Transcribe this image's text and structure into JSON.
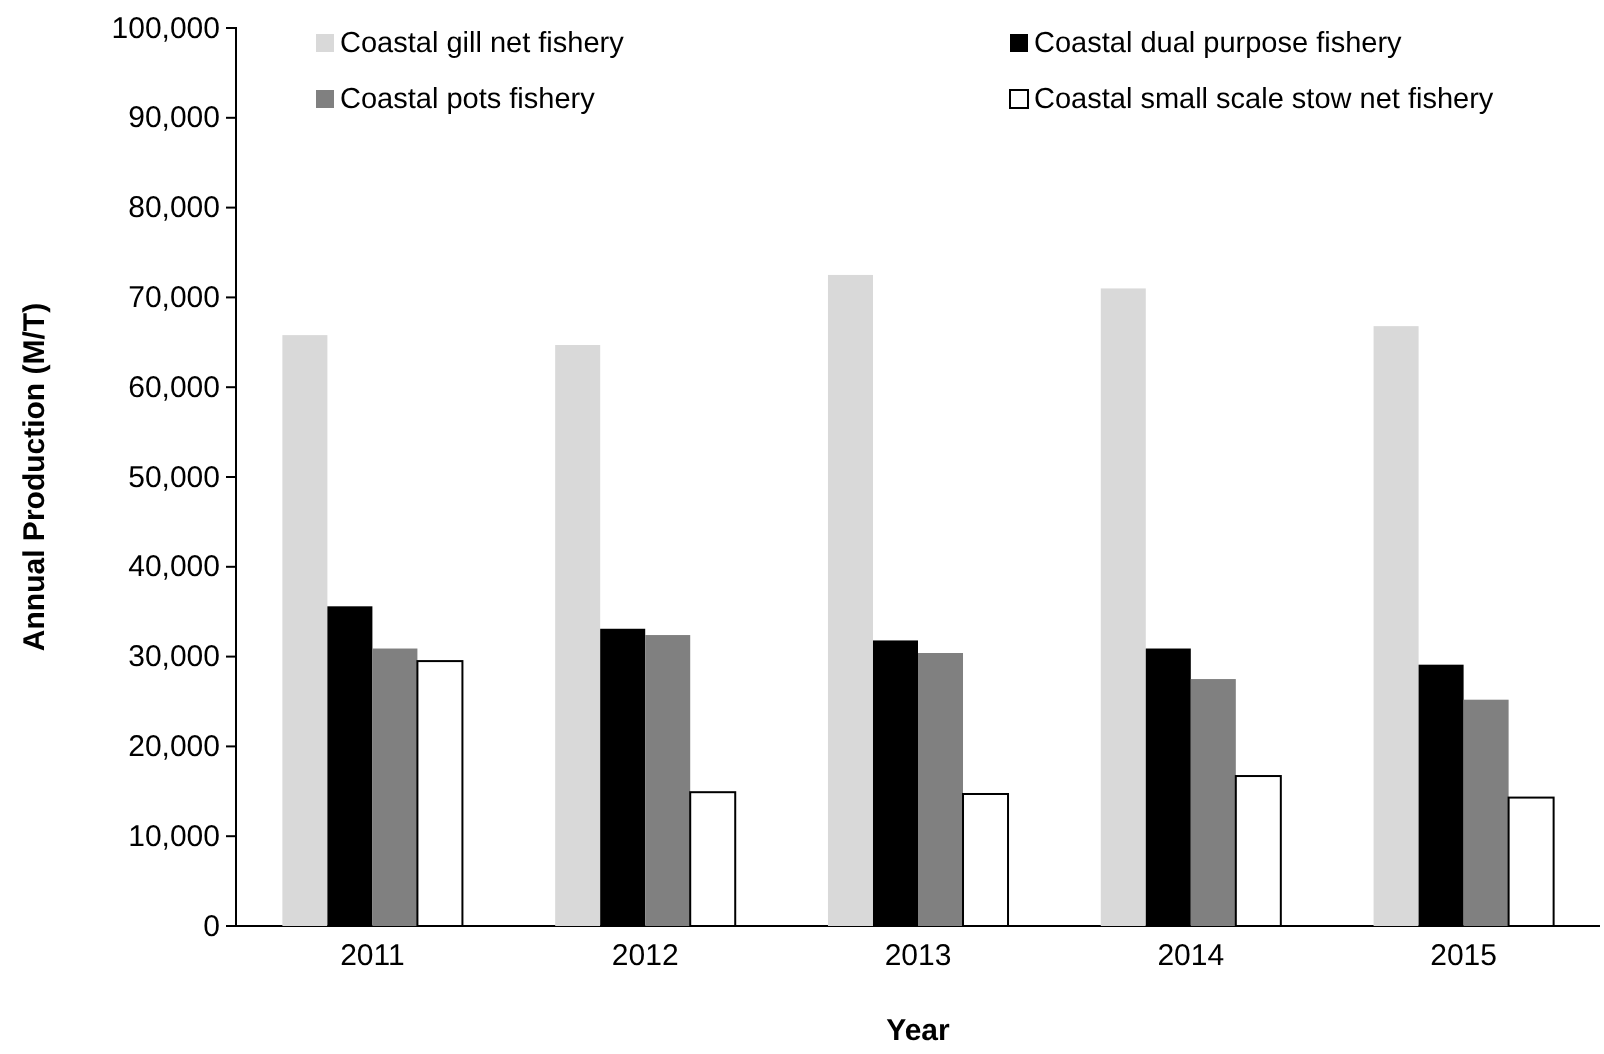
{
  "chart_data": {
    "type": "bar",
    "xlabel": "Year",
    "ylabel": "Annual Production (M/T)",
    "categories": [
      "2011",
      "2012",
      "2013",
      "2014",
      "2015"
    ],
    "series": [
      {
        "name": "Coastal gill net fishery",
        "color": "#d9d9d9",
        "values": [
          65800,
          64700,
          72500,
          71000,
          66800
        ]
      },
      {
        "name": "Coastal dual purpose fishery",
        "color": "#000000",
        "values": [
          35600,
          33100,
          31800,
          30900,
          29100
        ]
      },
      {
        "name": "Coastal pots fishery",
        "color": "#808080",
        "values": [
          30900,
          32400,
          30400,
          27500,
          25200
        ]
      },
      {
        "name": "Coastal small scale stow net fishery",
        "color": "#ffffff",
        "values": [
          29500,
          14900,
          14700,
          16700,
          14300
        ]
      }
    ],
    "ylim": [
      0,
      100000
    ],
    "yticks": [
      {
        "value": 0,
        "label": "0"
      },
      {
        "value": 10000,
        "label": "10,000"
      },
      {
        "value": 20000,
        "label": "20,000"
      },
      {
        "value": 30000,
        "label": "30,000"
      },
      {
        "value": 40000,
        "label": "40,000"
      },
      {
        "value": 50000,
        "label": "50,000"
      },
      {
        "value": 60000,
        "label": "60,000"
      },
      {
        "value": 70000,
        "label": "70,000"
      },
      {
        "value": 80000,
        "label": "80,000"
      },
      {
        "value": 90000,
        "label": "90,000"
      },
      {
        "value": 100000,
        "label": "100,000"
      }
    ],
    "grid": false,
    "legend": "top"
  }
}
